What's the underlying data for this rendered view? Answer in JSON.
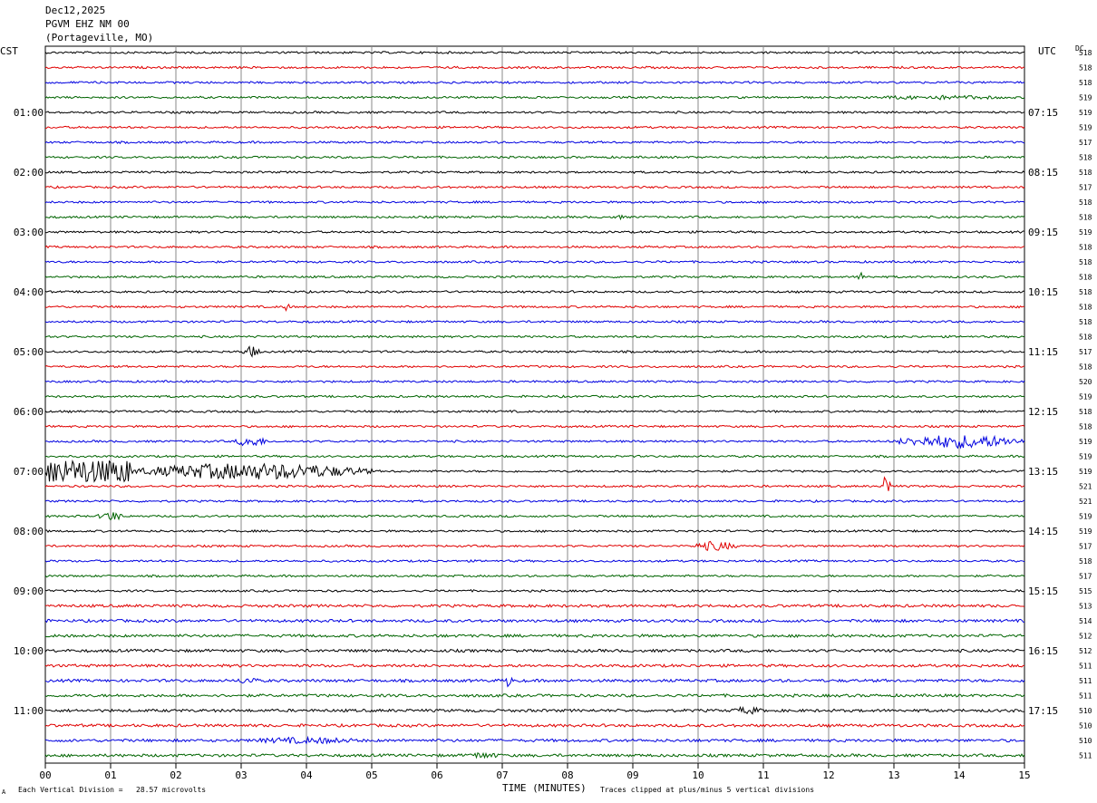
{
  "header": {
    "date": "Dec12,2025",
    "station": "PGVM EHZ NM 00",
    "location": "(Portageville, MO)"
  },
  "left_axis_title": "CST",
  "right_axis_title": "UTC",
  "dc_title": "DC",
  "footer": {
    "xlabel": "TIME (MINUTES)",
    "scale_note": "Each Vertical Division =   28.57 microvolts",
    "clip_note": "Traces clipped at plus/minus 5 vertical divisions",
    "corner_mark": "A"
  },
  "colors": [
    "#000000",
    "#e00000",
    "#0000e0",
    "#006400"
  ],
  "chart_data": {
    "type": "line",
    "title": "PGVM EHZ NM 00",
    "xlabel": "TIME (MINUTES)",
    "xlim": [
      0,
      15
    ],
    "x_ticks": [
      "00",
      "01",
      "02",
      "03",
      "04",
      "05",
      "06",
      "07",
      "08",
      "09",
      "10",
      "11",
      "12",
      "13",
      "14",
      "15"
    ],
    "left_time_labels": [
      "01:00",
      "02:00",
      "03:00",
      "04:00",
      "05:00",
      "06:00",
      "07:00",
      "08:00",
      "09:00",
      "10:00",
      "11:00"
    ],
    "right_time_labels": [
      "07:15",
      "08:15",
      "09:15",
      "10:15",
      "11:15",
      "12:15",
      "13:15",
      "14:15",
      "15:15",
      "16:15",
      "17:15"
    ],
    "dc_offsets": [
      "518",
      "518",
      "518",
      "519",
      "519",
      "519",
      "517",
      "518",
      "518",
      "517",
      "518",
      "518",
      "519",
      "518",
      "518",
      "518",
      "518",
      "518",
      "518",
      "518",
      "517",
      "518",
      "520",
      "519",
      "518",
      "518",
      "519",
      "519",
      "519",
      "521",
      "521",
      "519",
      "519",
      "517",
      "518",
      "517",
      "515",
      "513",
      "514",
      "512",
      "512",
      "511",
      "511",
      "511",
      "510",
      "510",
      "510",
      "511"
    ],
    "events": [
      {
        "trace": 3,
        "start": 12.4,
        "end": 15.0,
        "amp": 0.8
      },
      {
        "trace": 11,
        "start": 8.7,
        "end": 8.85,
        "amp": 1.2
      },
      {
        "trace": 15,
        "start": 12.45,
        "end": 12.55,
        "amp": 2.5
      },
      {
        "trace": 17,
        "start": 3.62,
        "end": 3.75,
        "amp": 1.6
      },
      {
        "trace": 20,
        "start": 3.0,
        "end": 3.3,
        "amp": 2.0
      },
      {
        "trace": 26,
        "start": 2.9,
        "end": 3.4,
        "amp": 2.0
      },
      {
        "trace": 26,
        "start": 13.0,
        "end": 15.0,
        "amp": 2.5
      },
      {
        "trace": 28,
        "start": 0.0,
        "end": 1.3,
        "amp": 5.0
      },
      {
        "trace": 28,
        "start": 1.3,
        "end": 5.0,
        "amp": 3.0
      },
      {
        "trace": 29,
        "start": 12.85,
        "end": 12.95,
        "amp": 3.5
      },
      {
        "trace": 31,
        "start": 0.8,
        "end": 1.2,
        "amp": 1.8
      },
      {
        "trace": 33,
        "start": 9.9,
        "end": 10.6,
        "amp": 1.8
      },
      {
        "trace": 42,
        "start": 7.05,
        "end": 7.15,
        "amp": 3.0
      },
      {
        "trace": 42,
        "start": 2.9,
        "end": 3.3,
        "amp": 1.3
      },
      {
        "trace": 44,
        "start": 10.5,
        "end": 11.0,
        "amp": 1.4
      },
      {
        "trace": 46,
        "start": 3.0,
        "end": 5.0,
        "amp": 1.2
      },
      {
        "trace": 47,
        "start": 6.4,
        "end": 7.0,
        "amp": 1.2
      }
    ]
  }
}
